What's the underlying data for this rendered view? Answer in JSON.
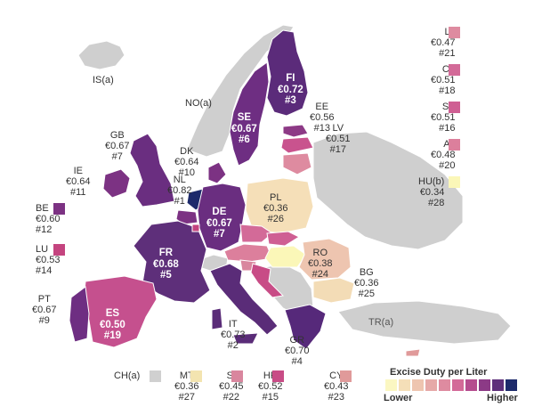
{
  "legend": {
    "title": "Excise Duty per Liter",
    "low": "Lower",
    "high": "Higher",
    "scale": [
      "#fbf7c2",
      "#f5dfb8",
      "#eec5b0",
      "#e6a9a8",
      "#de8ba0",
      "#d36a98",
      "#b54c8f",
      "#8c3a86",
      "#5e2f7a",
      "#1d2a6b"
    ]
  },
  "countries": {
    "IS": {
      "code": "IS(a)"
    },
    "NO": {
      "code": "NO(a)"
    },
    "FI": {
      "code": "FI",
      "price": "€0.72",
      "rank": "#3"
    },
    "SE": {
      "code": "SE",
      "price": "€0.67",
      "rank": "#6"
    },
    "EE": {
      "code": "EE",
      "price": "€0.56",
      "rank": "#13"
    },
    "LV": {
      "code": "LV",
      "price": "€0.51",
      "rank": "#17"
    },
    "LT": {
      "code": "LT",
      "price": "€0.47",
      "rank": "#21",
      "color": "#de8ba0"
    },
    "CZ": {
      "code": "CZ",
      "price": "€0.51",
      "rank": "#18",
      "color": "#d36a98"
    },
    "SK": {
      "code": "SK",
      "price": "€0.51",
      "rank": "#16",
      "color": "#cf5f93"
    },
    "AT": {
      "code": "AT",
      "price": "€0.48",
      "rank": "#20",
      "color": "#dc7f9c"
    },
    "HU": {
      "code": "HU(b)",
      "price": "€0.34",
      "rank": "#28",
      "color": "#fbf7b8"
    },
    "GB": {
      "code": "GB",
      "price": "€0.67",
      "rank": "#7"
    },
    "DK": {
      "code": "DK",
      "price": "€0.64",
      "rank": "#10"
    },
    "IE": {
      "code": "IE",
      "price": "€0.64",
      "rank": "#11"
    },
    "NL": {
      "code": "NL",
      "price": "€0.82",
      "rank": "#1"
    },
    "BE": {
      "code": "BE",
      "price": "€0.60",
      "rank": "#12",
      "color": "#7c3283"
    },
    "LU": {
      "code": "LU",
      "price": "€0.53",
      "rank": "#14",
      "color": "#c4447f"
    },
    "DE": {
      "code": "DE",
      "price": "€0.67",
      "rank": "#7"
    },
    "PL": {
      "code": "PL",
      "price": "€0.36",
      "rank": "#26"
    },
    "FR": {
      "code": "FR",
      "price": "€0.68",
      "rank": "#5"
    },
    "RO": {
      "code": "RO",
      "price": "€0.38",
      "rank": "#24"
    },
    "BG": {
      "code": "BG",
      "price": "€0.36",
      "rank": "#25"
    },
    "PT": {
      "code": "PT",
      "price": "€0.67",
      "rank": "#9"
    },
    "ES": {
      "code": "ES",
      "price": "€0.50",
      "rank": "#19"
    },
    "IT": {
      "code": "IT",
      "price": "€0.73",
      "rank": "#2"
    },
    "GR": {
      "code": "GR",
      "price": "€0.70",
      "rank": "#4"
    },
    "TR": {
      "code": "TR(a)"
    },
    "CH": {
      "code": "CH(a)",
      "color": "#d0d0d0"
    },
    "MT": {
      "code": "MT",
      "price": "€0.36",
      "rank": "#27",
      "color": "#f3e4b0"
    },
    "SI": {
      "code": "SI",
      "price": "€0.45",
      "rank": "#22",
      "color": "#d9869e"
    },
    "HR": {
      "code": "HR",
      "price": "€0.52",
      "rank": "#15",
      "color": "#c84c86"
    },
    "CY": {
      "code": "CY",
      "price": "€0.43",
      "rank": "#23",
      "color": "#e09a9a"
    }
  }
}
